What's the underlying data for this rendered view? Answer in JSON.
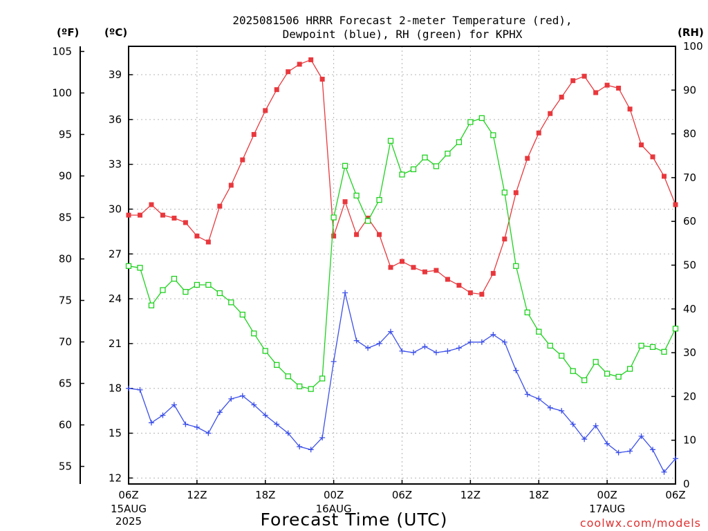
{
  "chart_data": {
    "type": "line",
    "title": "2025081506 HRRR Forecast 2-meter Temperature (red),",
    "subtitle": "Dewpoint (blue), RH (green) for KPHX",
    "xlabel": "Forecast Time (UTC)",
    "units": {
      "left_outer": "(ºF)",
      "left_inner": "(ºC)",
      "right": "(RH)"
    },
    "axes": {
      "celsius": {
        "range": [
          11.6,
          40.9
        ],
        "ticks": [
          12,
          15,
          18,
          21,
          24,
          27,
          30,
          33,
          36,
          39
        ]
      },
      "fahrenheit": {
        "ticks": [
          55,
          60,
          65,
          70,
          75,
          80,
          85,
          90,
          95,
          100,
          105
        ]
      },
      "rh": {
        "range": [
          0,
          100
        ],
        "ticks": [
          0,
          10,
          20,
          30,
          40,
          50,
          60,
          70,
          80,
          90,
          100
        ]
      },
      "x_hours": {
        "range": [
          0,
          48
        ]
      }
    },
    "x_ticks": [
      {
        "h": 0,
        "label": "06Z",
        "date1": "15AUG",
        "date2": "2025"
      },
      {
        "h": 6,
        "label": "12Z"
      },
      {
        "h": 12,
        "label": "18Z"
      },
      {
        "h": 18,
        "label": "00Z",
        "date1": "16AUG"
      },
      {
        "h": 24,
        "label": "06Z"
      },
      {
        "h": 30,
        "label": "12Z"
      },
      {
        "h": 36,
        "label": "18Z"
      },
      {
        "h": 42,
        "label": "00Z",
        "date1": "17AUG"
      },
      {
        "h": 48,
        "label": "06Z"
      }
    ],
    "grid": true,
    "series": [
      {
        "name": "Temperature (red)",
        "axis": "celsius",
        "color": "#e8383d",
        "marker": "filled-square",
        "values": [
          29.6,
          29.6,
          30.3,
          29.6,
          29.4,
          29.1,
          28.2,
          27.8,
          30.2,
          31.6,
          33.3,
          35.0,
          36.6,
          38.0,
          39.2,
          39.7,
          40.0,
          38.7,
          28.2,
          30.5,
          28.3,
          29.4,
          28.3,
          26.1,
          26.5,
          26.1,
          25.8,
          25.9,
          25.3,
          24.9,
          24.4,
          24.3,
          25.7,
          28.0,
          31.1,
          33.4,
          35.1,
          36.4,
          37.5,
          38.6,
          38.9,
          37.8,
          38.3,
          38.1,
          36.7,
          34.3,
          33.5,
          32.2,
          30.3
        ]
      },
      {
        "name": "Dewpoint (blue)",
        "axis": "celsius",
        "color": "#3b4fe8",
        "marker": "plus",
        "values": [
          18.0,
          17.9,
          15.7,
          16.2,
          16.9,
          15.6,
          15.4,
          15.0,
          16.4,
          17.3,
          17.5,
          16.9,
          16.2,
          15.6,
          15.0,
          14.1,
          13.9,
          14.7,
          19.8,
          24.4,
          21.2,
          20.7,
          21.0,
          21.8,
          20.5,
          20.4,
          20.8,
          20.4,
          20.5,
          20.7,
          21.1,
          21.1,
          21.6,
          21.1,
          19.2,
          17.6,
          17.3,
          16.7,
          16.5,
          15.6,
          14.6,
          15.5,
          14.3,
          13.7,
          13.8,
          14.8,
          13.9,
          12.4,
          13.3
        ]
      },
      {
        "name": "RH (green)",
        "axis": "rh",
        "color": "#1ed11e",
        "marker": "open-square",
        "values": [
          49.8,
          49.4,
          40.8,
          44.3,
          46.9,
          43.9,
          45.5,
          45.5,
          43.6,
          41.5,
          38.7,
          34.4,
          30.4,
          27.2,
          24.6,
          22.3,
          21.7,
          24.1,
          60.9,
          72.7,
          65.9,
          60.1,
          64.9,
          78.4,
          70.7,
          71.9,
          74.6,
          72.6,
          75.5,
          78.1,
          82.7,
          83.6,
          79.7,
          66.6,
          49.8,
          39.2,
          34.8,
          31.6,
          29.3,
          25.8,
          23.7,
          27.9,
          25.2,
          24.5,
          26.3,
          31.6,
          31.3,
          30.2,
          35.5
        ]
      }
    ]
  },
  "watermark": "coolwx.com/models"
}
